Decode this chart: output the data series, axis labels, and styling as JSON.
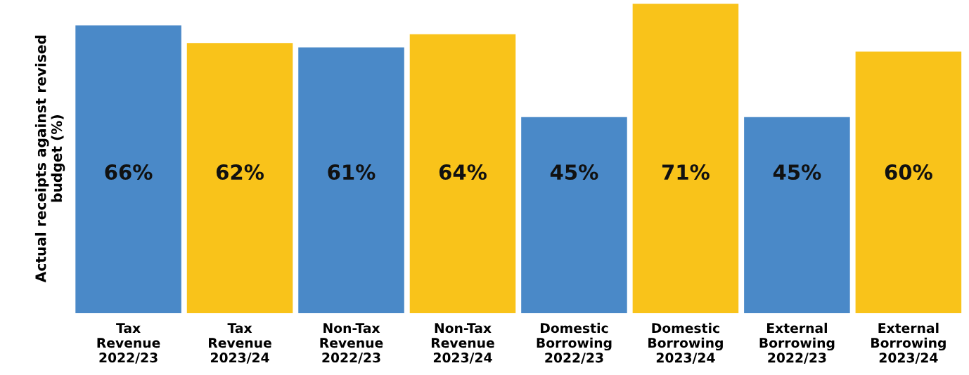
{
  "chart_data": {
    "type": "bar",
    "ylabel": "Actual receipts against revised\nbudget (%)",
    "categories": [
      "Tax\nRevenue\n2022/23",
      "Tax\nRevenue\n2023/24",
      "Non-Tax\nRevenue\n2022/23",
      "Non-Tax\nRevenue\n2023/24",
      "Domestic\nBorrowing\n2022/23",
      "Domestic\nBorrowing\n2023/24",
      "External\nBorrowing\n2022/23",
      "External\nBorrowing\n2023/24"
    ],
    "values": [
      66,
      62,
      61,
      64,
      45,
      71,
      45,
      60
    ],
    "colors": [
      "#4a89c8",
      "#f9c31a",
      "#4a89c8",
      "#f9c31a",
      "#4a89c8",
      "#f9c31a",
      "#4a89c8",
      "#f9c31a"
    ],
    "value_labels": [
      "66%",
      "62%",
      "61%",
      "64%",
      "45%",
      "71%",
      "45%",
      "60%"
    ],
    "grid": false,
    "legend": false
  }
}
